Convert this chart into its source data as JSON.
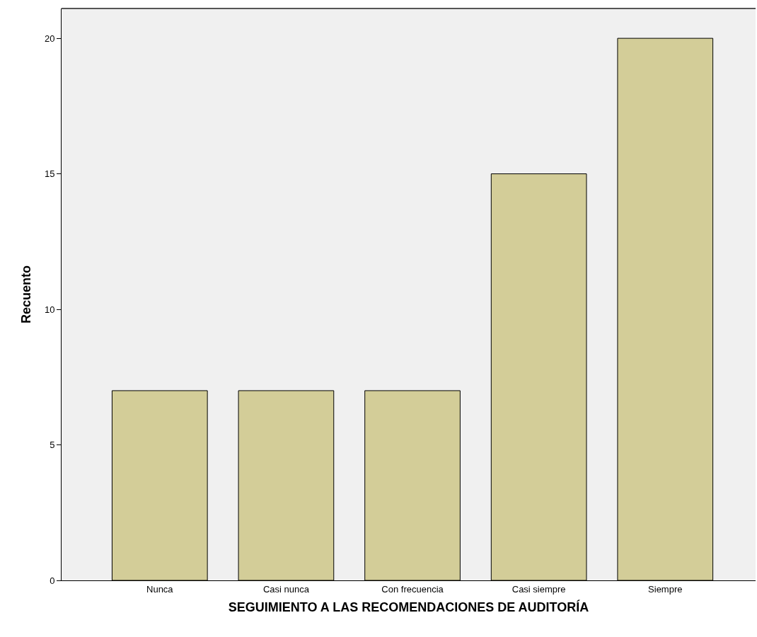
{
  "chart_data": {
    "type": "bar",
    "xlabel": "SEGUIMIENTO A LAS RECOMENDACIONES DE AUDITORÍA",
    "ylabel": "Recuento",
    "categories": [
      "Nunca",
      "Casi nunca",
      "Con frecuencia",
      "Casi siempre",
      "Siempre"
    ],
    "values": [
      7,
      7,
      7,
      15,
      20
    ],
    "color": "#d3cd98",
    "ylim": [
      0,
      21.1
    ],
    "yticks": [
      0,
      5,
      10,
      15,
      20
    ],
    "grid": false
  }
}
